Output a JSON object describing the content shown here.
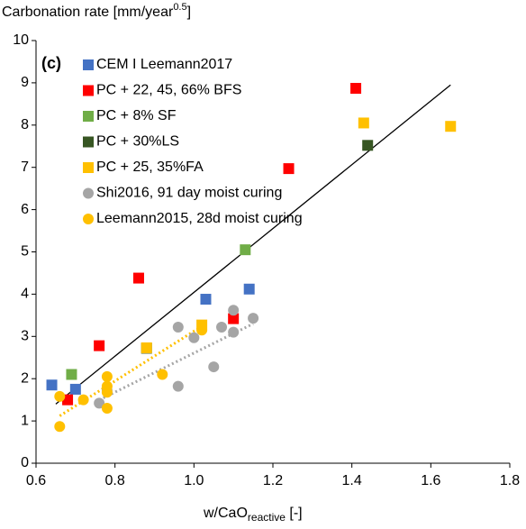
{
  "chart_data": {
    "type": "scatter",
    "y_label": {
      "main": "Carbonation rate [mm/year",
      "sup": "0.5",
      "end": "]"
    },
    "x_label": {
      "main": "w/CaO",
      "sub": "reactive",
      "end": " [-]"
    },
    "panel_label": "(c)",
    "xlim": [
      0.6,
      1.8
    ],
    "xticks": [
      0.6,
      0.8,
      {
        "value": 1,
        "label": "1.0"
      },
      1.2,
      1.4,
      1.6,
      1.8
    ],
    "ylim": [
      0,
      10
    ],
    "yticks": [
      0,
      1,
      2,
      3,
      4,
      5,
      6,
      7,
      8,
      9,
      10
    ],
    "grid": false,
    "legend": "top-left",
    "series": [
      {
        "name": "CEM I Leemann2017",
        "color": "#4472c4",
        "marker": "square",
        "x": [
          0.64,
          0.7,
          1.03,
          1.14
        ],
        "values": [
          1.85,
          1.75,
          3.88,
          4.12
        ]
      },
      {
        "name": "PC + 22, 45, 66% BFS",
        "color": "#ff0000",
        "marker": "square",
        "x": [
          0.68,
          0.76,
          0.86,
          1.1,
          1.24,
          1.41
        ],
        "values": [
          1.5,
          2.78,
          4.38,
          3.42,
          6.97,
          8.87
        ]
      },
      {
        "name": "PC + 8% SF",
        "color": "#70ad47",
        "marker": "square",
        "x": [
          0.69,
          1.13
        ],
        "values": [
          2.1,
          5.05
        ]
      },
      {
        "name": "PC + 30%LS",
        "color": "#375623",
        "marker": "square",
        "x": [
          0.88,
          1.44
        ],
        "values": [
          2.72,
          7.52
        ]
      },
      {
        "name": "PC + 25, 35%FA",
        "color": "#ffc000",
        "marker": "square",
        "x": [
          0.88,
          1.02,
          1.43,
          1.65
        ],
        "values": [
          2.73,
          3.27,
          8.05,
          7.97
        ]
      },
      {
        "name": "Shi2016, 91 day moist curing",
        "color": "#a5a5a5",
        "marker": "circle",
        "x": [
          0.76,
          0.78,
          0.96,
          0.96,
          1.0,
          1.05,
          1.07,
          1.1,
          1.1,
          1.15
        ],
        "values": [
          1.42,
          1.72,
          3.22,
          1.82,
          2.97,
          2.28,
          3.22,
          3.62,
          3.1,
          3.43
        ]
      },
      {
        "name": "Leemann2015, 28d moist curing",
        "color": "#ffc000",
        "marker": "circle",
        "x": [
          0.66,
          0.66,
          0.72,
          0.78,
          0.78,
          0.78,
          0.78,
          0.92,
          1.02
        ],
        "values": [
          0.87,
          1.58,
          1.5,
          1.3,
          1.68,
          1.82,
          2.05,
          2.1,
          3.15
        ]
      }
    ],
    "trend_lines": [
      {
        "color": "#000000",
        "style": "solid",
        "x": [
          0.65,
          1.65
        ],
        "values": [
          1.4,
          8.95
        ]
      },
      {
        "color": "#ffc000",
        "style": "dotted",
        "x": [
          0.66,
          1.03
        ],
        "values": [
          1.12,
          3.3
        ]
      },
      {
        "color": "#a5a5a5",
        "style": "dotted",
        "x": [
          0.75,
          1.15
        ],
        "values": [
          1.45,
          3.3
        ]
      }
    ]
  }
}
